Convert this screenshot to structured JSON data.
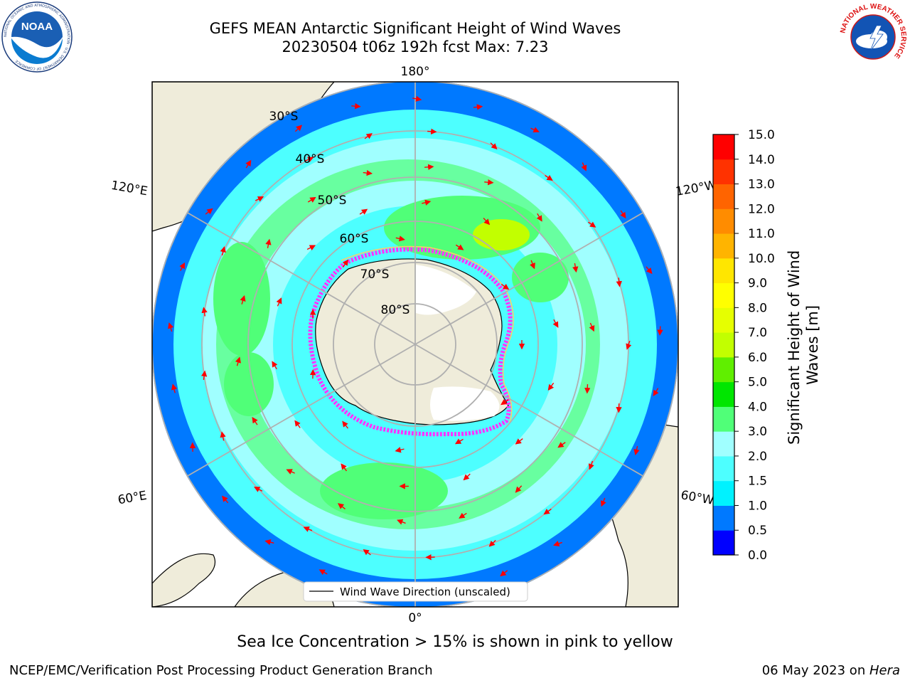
{
  "header": {
    "title_line1": "GEFS MEAN Antarctic Significant Height of Wind Waves",
    "title_line2": "20230504 t06z 192h fcst   Max: 7.23"
  },
  "logos": {
    "noaa_text": "NOAA",
    "noaa_ring_text": "NATIONAL OCEANIC AND ATMOSPHERIC ADMINISTRATION · U.S. DEPARTMENT OF COMMERCE",
    "nws_ring_text": "NATIONAL WEATHER SERVICE"
  },
  "map": {
    "projection": "south-polar-stereographic",
    "longitude_labels": [
      "180°",
      "120°E",
      "120°W",
      "60°E",
      "60°W",
      "0°"
    ],
    "latitude_labels": [
      "30°S",
      "40°S",
      "50°S",
      "60°S",
      "70°S",
      "80°S"
    ],
    "legend_label": "Wind Wave Direction (unscaled)",
    "colors": {
      "land": "#efecda",
      "ice_shelf": "#ffffff",
      "sea_ice_edge": [
        "#ff33ff",
        "#ffcc66"
      ],
      "vector": "#ff0000",
      "graticule": "#b0b0b0"
    }
  },
  "colorbar": {
    "label": "Significant Height of Wind Waves [m]",
    "tick_labels": [
      "0.0",
      "0.5",
      "1.0",
      "1.5",
      "2.0",
      "3.0",
      "4.0",
      "5.0",
      "6.0",
      "7.0",
      "8.0",
      "9.0",
      "10.0",
      "11.0",
      "12.0",
      "13.0",
      "14.0",
      "15.0"
    ],
    "colors": [
      "#0000ff",
      "#0079ff",
      "#00f2ff",
      "#4dffff",
      "#a0ffff",
      "#50ff78",
      "#00e600",
      "#60ef00",
      "#c2ff00",
      "#e6ff00",
      "#ffff00",
      "#ffe600",
      "#ffb400",
      "#ff8c00",
      "#ff6400",
      "#ff3200",
      "#ff0000"
    ]
  },
  "caption": "Sea Ice Concentration > 15% is shown in pink to yellow",
  "footer": {
    "left": "NCEP/EMC/Verification Post Processing Product Generation Branch",
    "right_prefix": "06 May 2023 on ",
    "right_machine": "Hera"
  }
}
